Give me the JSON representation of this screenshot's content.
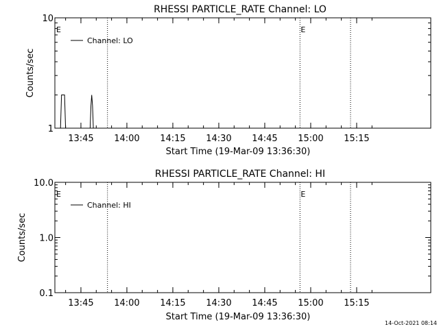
{
  "chart_data": [
    {
      "type": "line",
      "title": "RHESSI PARTICLE_RATE Channel: LO",
      "xlabel": "Start Time (19-Mar-09 13:36:30)",
      "ylabel": "Counts/sec",
      "yscale": "log",
      "ylim": [
        1,
        10
      ],
      "yticks": [
        "1",
        "10"
      ],
      "xlim_minutes_after_start": [
        0,
        100
      ],
      "xticks": [
        "13:45",
        "14:00",
        "14:15",
        "14:30",
        "14:45",
        "15:00",
        "15:15"
      ],
      "legend": {
        "placement": "top-left",
        "entries": [
          "Channel: LO"
        ]
      },
      "series": [
        {
          "name": "Channel: LO",
          "points": [
            {
              "t": "13:38:20",
              "y": 1
            },
            {
              "t": "13:38:40",
              "y": 2
            },
            {
              "t": "13:39:40",
              "y": 2
            },
            {
              "t": "13:40:00",
              "y": 1
            },
            {
              "t": "13:48:00",
              "y": 1
            },
            {
              "t": "13:48:16",
              "y": 1.6
            },
            {
              "t": "13:48:32",
              "y": 2
            },
            {
              "t": "13:48:48",
              "y": 1.6
            },
            {
              "t": "13:49:04",
              "y": 1
            }
          ]
        }
      ],
      "markers": [
        {
          "t": "13:36:30",
          "label": "E"
        },
        {
          "t": "13:53:40",
          "label": ""
        },
        {
          "t": "14:56:30",
          "label": "E"
        },
        {
          "t": "15:13:00",
          "label": ""
        }
      ]
    },
    {
      "type": "line",
      "title": "RHESSI PARTICLE_RATE Channel: HI",
      "xlabel": "Start Time (19-Mar-09 13:36:30)",
      "ylabel": "Counts/sec",
      "yscale": "log",
      "ylim": [
        0.1,
        10
      ],
      "yticks": [
        "0.1",
        "1.0",
        "10.0"
      ],
      "xlim_minutes_after_start": [
        0,
        100
      ],
      "xticks": [
        "13:45",
        "14:00",
        "14:15",
        "14:30",
        "14:45",
        "15:00",
        "15:15"
      ],
      "legend": {
        "placement": "top-left",
        "entries": [
          "Channel: HI"
        ]
      },
      "series": [
        {
          "name": "Channel: HI",
          "points": []
        }
      ],
      "markers": [
        {
          "t": "13:36:30",
          "label": "E"
        },
        {
          "t": "13:53:40",
          "label": ""
        },
        {
          "t": "14:56:30",
          "label": "E"
        },
        {
          "t": "15:13:00",
          "label": ""
        }
      ]
    }
  ],
  "footer": {
    "timestamp": "14-Oct-2021 08:14"
  }
}
